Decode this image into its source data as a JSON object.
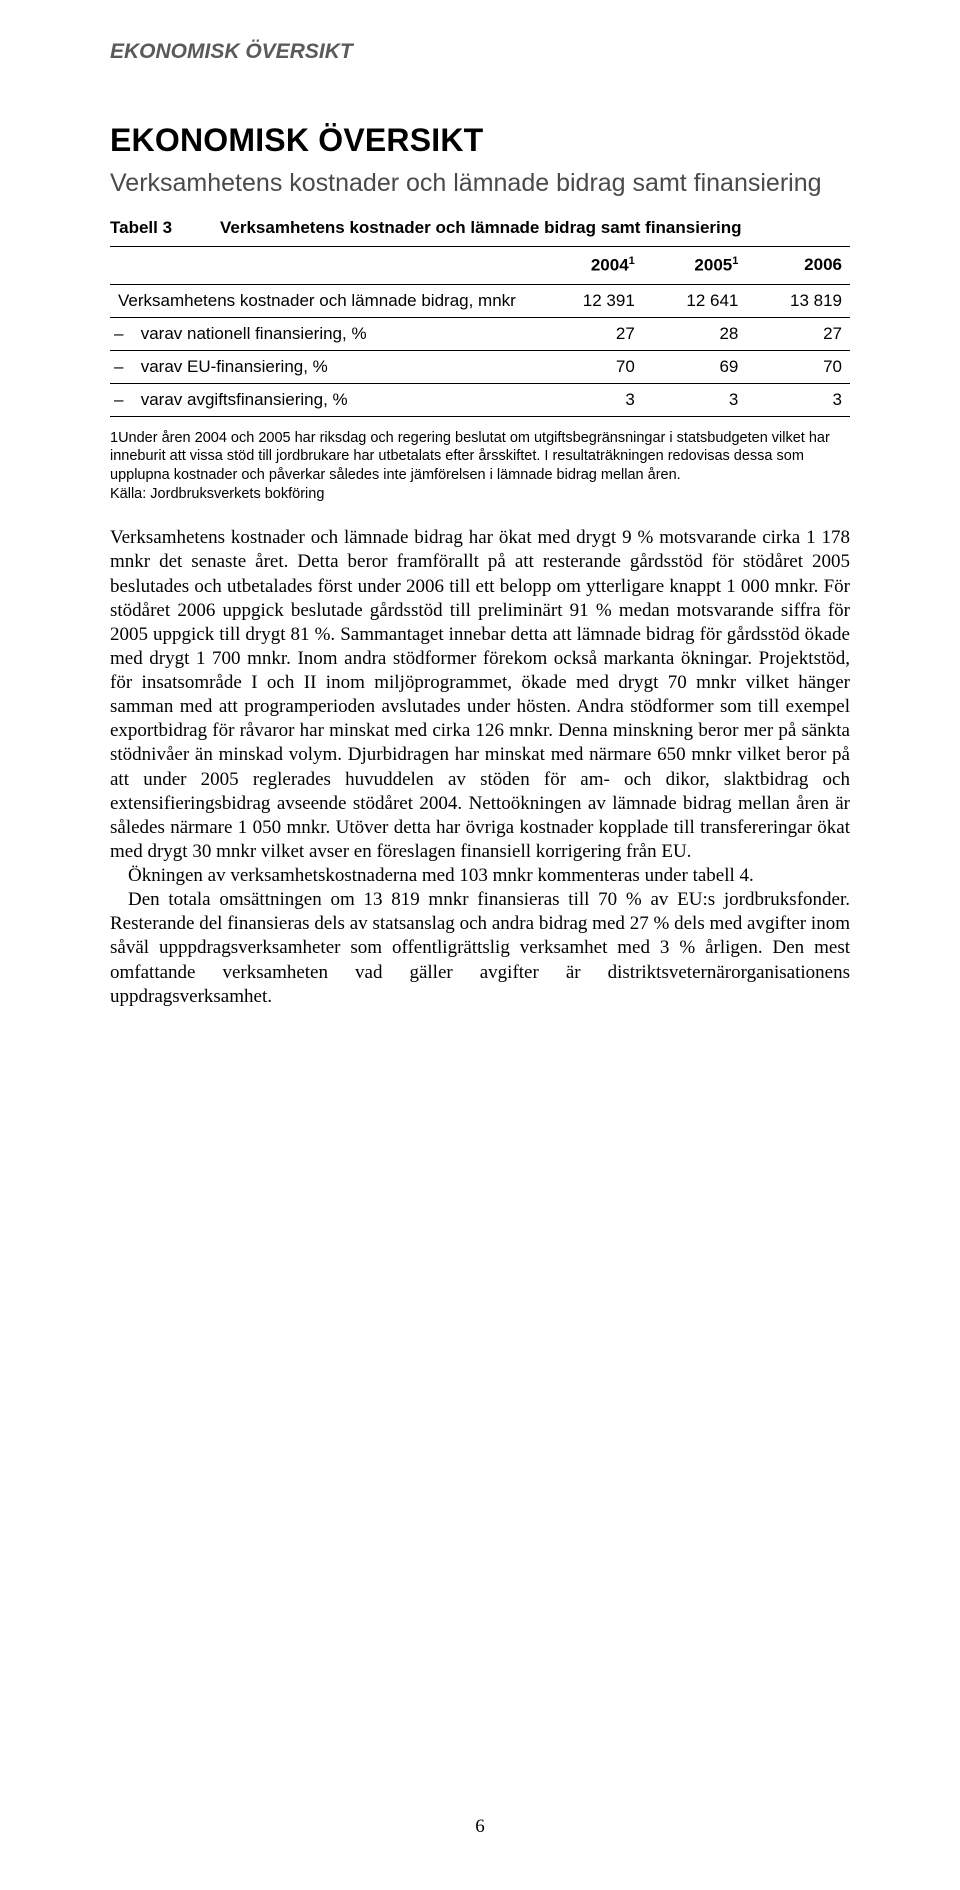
{
  "runningHeader": "EKONOMISK ÖVERSIKT",
  "title": "EKONOMISK ÖVERSIKT",
  "subtitle": "Verksamhetens kostnader och lämnade bidrag samt finansiering",
  "table": {
    "captionLabel": "Tabell 3",
    "captionText": "Verksamhetens kostnader och lämnade bidrag samt finansiering",
    "headers": {
      "c0": "",
      "c1": "2004",
      "c1sup": "1",
      "c2": "2005",
      "c2sup": "1",
      "c3": "2006"
    },
    "rows": [
      {
        "label": "Verksamhetens kostnader och lämnade bidrag, mnkr",
        "v1": "12 391",
        "v2": "12 641",
        "v3": "13 819",
        "sub": false
      },
      {
        "label": " varav nationell finansiering, %",
        "v1": "27",
        "v2": "28",
        "v3": "27",
        "sub": true
      },
      {
        "label": " varav EU-finansiering, %",
        "v1": "70",
        "v2": "69",
        "v3": "70",
        "sub": true
      },
      {
        "label": " varav avgiftsfinansiering, %",
        "v1": "3",
        "v2": "3",
        "v3": "3",
        "sub": true
      }
    ]
  },
  "footnote": "1Under åren 2004 och 2005 har riksdag och regering beslutat om utgiftsbegränsningar i statsbudgeten vilket har inneburit att vissa stöd till jordbrukare har utbetalats efter årsskiftet. I resultaträkningen redovisas dessa som upplupna kostnader och påverkar således inte jämförelsen i lämnade bidrag mellan åren.",
  "source": "Källa: Jordbruksverkets bokföring",
  "paragraphs": [
    "Verksamhetens kostnader och lämnade bidrag har ökat med drygt 9 % motsvarande cirka 1 178 mnkr det senaste året. Detta beror framförallt på att resterande gårdsstöd för stödåret 2005 beslutades och utbetalades först under 2006 till ett belopp om ytterligare knappt 1 000 mnkr. För stödåret 2006 uppgick beslutade gårdsstöd till preliminärt 91 % medan motsvarande siffra för 2005 uppgick till drygt 81 %. Sammantaget innebar detta att lämnade bidrag för gårdsstöd ökade med drygt 1 700 mnkr. Inom andra stödformer förekom också markanta ökningar. Projektstöd, för insatsområde I och II inom miljöprogrammet, ökade med drygt 70 mnkr vilket hänger samman med att programperioden avslutades under hösten. Andra stödformer som till exempel exportbidrag för råvaror har minskat med cirka 126 mnkr. Denna minskning beror mer på sänkta stödnivåer än minskad volym. Djurbidragen har minskat med närmare 650 mnkr vilket beror på att under 2005 reglerades huvuddelen av stöden för am- och dikor, slaktbidrag och extensifieringsbidrag avseende stödåret 2004. Nettoökningen av lämnade bidrag mellan åren är således närmare 1 050 mnkr. Utöver detta har övriga kostnader kopplade till transfereringar ökat med drygt 30 mnkr vilket avser en föreslagen finansiell korrigering från EU.",
    "Ökningen av verksamhetskostnaderna med 103 mnkr kommenteras under tabell 4.",
    "Den totala omsättningen om 13 819 mnkr finansieras till 70 % av EU:s jordbruksfonder. Resterande del finansieras dels av statsanslag och andra bidrag med 27 % dels med avgifter inom såväl upppdragsverksamheter som offentligrättslig verksamhet med 3 % årligen. Den mest omfattande verksamheten vad gäller avgifter är distriktsveternärorganisationens uppdragsverksamhet."
  ],
  "pageNumber": "6"
}
